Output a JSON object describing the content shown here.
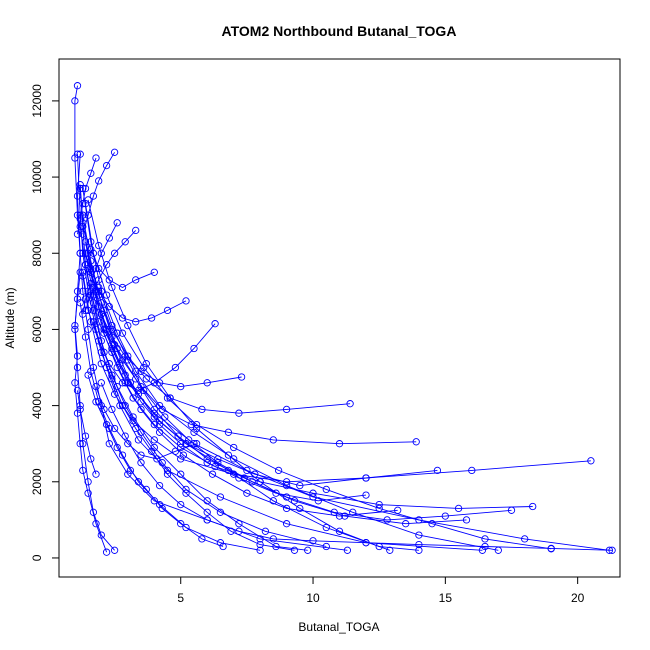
{
  "chart_data": {
    "type": "scatter",
    "title": "ATOM2 Northbound Butanal_TOGA",
    "xlabel": "Butanal_TOGA",
    "ylabel": "Altitude (m)",
    "xlim": [
      0.4,
      21.6
    ],
    "ylim": [
      -500,
      13100
    ],
    "xticks": [
      5,
      10,
      15,
      20
    ],
    "yticks": [
      0,
      2000,
      4000,
      6000,
      8000,
      10000,
      12000
    ],
    "series_color": "#0000ff",
    "marker": "open-circle",
    "lines_connect_points": true,
    "grid": false,
    "legend": "none",
    "profiles": [
      [
        [
          2.5,
          200
        ],
        [
          2.0,
          600
        ],
        [
          1.7,
          1200
        ],
        [
          1.5,
          2000
        ],
        [
          1.3,
          3000
        ],
        [
          1.2,
          4000
        ],
        [
          1.1,
          5000
        ],
        [
          1.0,
          6000
        ],
        [
          1.1,
          7000
        ],
        [
          1.2,
          8000
        ],
        [
          1.1,
          9000
        ],
        [
          1.0,
          10500
        ],
        [
          1.0,
          12000
        ],
        [
          1.1,
          12400
        ]
      ],
      [
        [
          11.3,
          200
        ],
        [
          8.0,
          500
        ],
        [
          6.0,
          1000
        ],
        [
          4.0,
          1500
        ],
        [
          3.0,
          2200
        ],
        [
          2.3,
          3000
        ],
        [
          2.0,
          4000
        ],
        [
          1.7,
          5000
        ],
        [
          1.5,
          6000
        ],
        [
          1.3,
          7000
        ],
        [
          1.2,
          8000
        ],
        [
          1.1,
          9500
        ],
        [
          1.2,
          10600
        ]
      ],
      [
        [
          16.4,
          200
        ],
        [
          12.0,
          400
        ],
        [
          9.0,
          900
        ],
        [
          6.5,
          1600
        ],
        [
          4.5,
          2300
        ],
        [
          3.4,
          3100
        ],
        [
          2.7,
          4000
        ],
        [
          2.2,
          5000
        ],
        [
          1.8,
          6000
        ],
        [
          1.5,
          7000
        ],
        [
          1.3,
          8000
        ],
        [
          1.2,
          9000
        ],
        [
          1.1,
          10600
        ]
      ],
      [
        [
          21.2,
          200
        ],
        [
          18.0,
          500
        ],
        [
          14.0,
          1000
        ],
        [
          10.0,
          1600
        ],
        [
          7.5,
          2300
        ],
        [
          5.5,
          3000
        ],
        [
          4.0,
          3800
        ],
        [
          3.0,
          4600
        ],
        [
          2.4,
          5500
        ],
        [
          1.9,
          6600
        ],
        [
          1.6,
          7600
        ],
        [
          1.3,
          8800
        ],
        [
          1.2,
          9800
        ]
      ],
      [
        [
          12.9,
          200
        ],
        [
          10.5,
          800
        ],
        [
          8.5,
          1500
        ],
        [
          6.8,
          2300
        ],
        [
          5.2,
          3000
        ],
        [
          4.0,
          3700
        ],
        [
          3.1,
          4600
        ],
        [
          2.5,
          5600
        ],
        [
          2.0,
          6700
        ],
        [
          1.6,
          7800
        ],
        [
          1.3,
          9000
        ]
      ],
      [
        [
          17.0,
          200
        ],
        [
          14.0,
          600
        ],
        [
          11.5,
          1200
        ],
        [
          9.0,
          1900
        ],
        [
          7.0,
          2600
        ],
        [
          5.5,
          3300
        ],
        [
          4.2,
          4000
        ],
        [
          3.3,
          4900
        ],
        [
          2.6,
          5900
        ],
        [
          2.0,
          7000
        ],
        [
          1.6,
          8300
        ],
        [
          1.3,
          9700
        ]
      ],
      [
        [
          9.8,
          200
        ],
        [
          8.6,
          300
        ],
        [
          7.2,
          900
        ],
        [
          6.0,
          1500
        ],
        [
          5.0,
          2200
        ],
        [
          4.0,
          2900
        ],
        [
          3.2,
          3700
        ],
        [
          2.6,
          4500
        ],
        [
          2.1,
          5400
        ],
        [
          1.7,
          6500
        ],
        [
          1.4,
          7700
        ],
        [
          1.2,
          9700
        ]
      ],
      [
        [
          14.0,
          200
        ],
        [
          12.5,
          300
        ],
        [
          11.0,
          700
        ],
        [
          9.5,
          1300
        ],
        [
          8.0,
          2000
        ],
        [
          6.8,
          2700
        ],
        [
          5.6,
          3400
        ],
        [
          4.6,
          4200
        ],
        [
          3.7,
          5100
        ],
        [
          3.0,
          6100
        ],
        [
          2.4,
          7100
        ],
        [
          1.9,
          8200
        ],
        [
          1.5,
          9400
        ]
      ],
      [
        [
          20.5,
          2550
        ],
        [
          16.0,
          2300
        ],
        [
          12.0,
          2100
        ],
        [
          9.0,
          2000
        ],
        [
          7.0,
          2200
        ],
        [
          5.0,
          2600
        ],
        [
          4.0,
          3100
        ],
        [
          3.2,
          3600
        ],
        [
          2.5,
          4300
        ],
        [
          2.0,
          5100
        ],
        [
          1.6,
          6200
        ],
        [
          1.3,
          7500
        ]
      ],
      [
        [
          14.7,
          2300
        ],
        [
          12.0,
          2100
        ],
        [
          9.5,
          1900
        ],
        [
          7.8,
          2200
        ],
        [
          6.4,
          2600
        ],
        [
          5.2,
          3000
        ],
        [
          4.2,
          3600
        ],
        [
          3.4,
          4300
        ],
        [
          2.7,
          5100
        ],
        [
          2.1,
          6000
        ],
        [
          1.7,
          7100
        ],
        [
          1.4,
          8300
        ]
      ],
      [
        [
          13.9,
          3050
        ],
        [
          11.0,
          3000
        ],
        [
          8.5,
          3100
        ],
        [
          6.8,
          3300
        ],
        [
          5.4,
          3500
        ],
        [
          4.3,
          3900
        ],
        [
          3.5,
          4500
        ],
        [
          2.8,
          5200
        ],
        [
          2.2,
          6000
        ],
        [
          1.8,
          7000
        ],
        [
          1.4,
          8000
        ]
      ],
      [
        [
          18.3,
          1350
        ],
        [
          15.5,
          1300
        ],
        [
          12.5,
          1400
        ],
        [
          10.0,
          1700
        ],
        [
          8.0,
          2000
        ],
        [
          6.3,
          2400
        ],
        [
          5.0,
          2900
        ],
        [
          4.0,
          3500
        ],
        [
          3.2,
          4200
        ],
        [
          2.6,
          5000
        ],
        [
          2.1,
          5900
        ],
        [
          1.7,
          6900
        ],
        [
          1.4,
          8000
        ]
      ],
      [
        [
          11.4,
          4050
        ],
        [
          9.0,
          3900
        ],
        [
          7.2,
          3800
        ],
        [
          5.8,
          3900
        ],
        [
          4.6,
          4200
        ],
        [
          3.7,
          4700
        ],
        [
          3.0,
          5300
        ],
        [
          2.4,
          6000
        ],
        [
          1.9,
          6900
        ],
        [
          1.5,
          8000
        ]
      ],
      [
        [
          19.0,
          240
        ],
        [
          16.5,
          500
        ],
        [
          14.5,
          900
        ],
        [
          12.5,
          1300
        ],
        [
          10.5,
          1800
        ],
        [
          8.7,
          2300
        ],
        [
          7.0,
          2900
        ],
        [
          5.6,
          3500
        ],
        [
          4.5,
          4200
        ],
        [
          3.6,
          5000
        ],
        [
          2.8,
          5900
        ],
        [
          2.2,
          6900
        ],
        [
          1.7,
          8000
        ],
        [
          1.4,
          9300
        ]
      ],
      [
        [
          4.0,
          7500
        ],
        [
          3.3,
          7300
        ],
        [
          2.8,
          7100
        ],
        [
          2.3,
          7300
        ],
        [
          1.9,
          7600
        ],
        [
          1.6,
          8100
        ],
        [
          1.3,
          8700
        ]
      ],
      [
        [
          6.3,
          6150
        ],
        [
          5.5,
          5500
        ],
        [
          4.8,
          5000
        ],
        [
          4.0,
          4600
        ],
        [
          3.4,
          4400
        ],
        [
          2.8,
          4600
        ],
        [
          2.3,
          5100
        ],
        [
          1.9,
          5700
        ],
        [
          1.5,
          6500
        ],
        [
          1.3,
          7400
        ]
      ],
      [
        [
          5.2,
          6750
        ],
        [
          4.5,
          6500
        ],
        [
          3.9,
          6300
        ],
        [
          3.3,
          6200
        ],
        [
          2.8,
          6300
        ],
        [
          2.3,
          6600
        ],
        [
          1.9,
          7000
        ],
        [
          1.5,
          7600
        ]
      ],
      [
        [
          2.5,
          10650
        ],
        [
          2.2,
          10300
        ],
        [
          1.9,
          9900
        ],
        [
          1.7,
          9500
        ],
        [
          1.5,
          9000
        ],
        [
          1.3,
          8500
        ]
      ],
      [
        [
          3.3,
          8600
        ],
        [
          2.9,
          8300
        ],
        [
          2.5,
          8000
        ],
        [
          2.2,
          7700
        ],
        [
          1.9,
          7300
        ],
        [
          1.6,
          6900
        ],
        [
          1.4,
          6500
        ]
      ],
      [
        [
          2.2,
          150
        ],
        [
          1.8,
          900
        ],
        [
          1.5,
          1700
        ],
        [
          1.3,
          2300
        ],
        [
          1.2,
          3000
        ],
        [
          1.1,
          3800
        ],
        [
          1.0,
          4600
        ],
        [
          1.1,
          5300
        ],
        [
          1.0,
          6100
        ],
        [
          1.1,
          6800
        ],
        [
          1.2,
          7500
        ]
      ],
      [
        [
          8.0,
          200
        ],
        [
          6.5,
          400
        ],
        [
          5.2,
          800
        ],
        [
          4.2,
          1400
        ],
        [
          3.4,
          2000
        ],
        [
          2.8,
          2700
        ],
        [
          2.3,
          3400
        ],
        [
          1.9,
          4100
        ],
        [
          1.6,
          4900
        ],
        [
          1.4,
          5800
        ],
        [
          1.2,
          6700
        ]
      ],
      [
        [
          10.5,
          300
        ],
        [
          8.2,
          700
        ],
        [
          6.5,
          1200
        ],
        [
          5.2,
          1800
        ],
        [
          4.3,
          2500
        ],
        [
          3.5,
          3300
        ],
        [
          2.9,
          4000
        ],
        [
          2.4,
          4800
        ],
        [
          2.0,
          5700
        ],
        [
          1.7,
          6700
        ],
        [
          1.4,
          7700
        ],
        [
          1.2,
          8700
        ]
      ],
      [
        [
          13.2,
          1250
        ],
        [
          11.0,
          1100
        ],
        [
          9.0,
          1300
        ],
        [
          7.5,
          1700
        ],
        [
          6.2,
          2200
        ],
        [
          5.1,
          2700
        ],
        [
          4.2,
          3300
        ],
        [
          3.5,
          3900
        ],
        [
          2.9,
          4600
        ],
        [
          2.4,
          5400
        ],
        [
          1.9,
          6200
        ],
        [
          1.6,
          7000
        ]
      ],
      [
        [
          15.8,
          1000
        ],
        [
          13.5,
          900
        ],
        [
          11.2,
          1100
        ],
        [
          9.3,
          1500
        ],
        [
          7.7,
          2000
        ],
        [
          6.4,
          2500
        ],
        [
          5.3,
          3100
        ],
        [
          4.4,
          3700
        ],
        [
          3.6,
          4400
        ],
        [
          3.0,
          5200
        ],
        [
          2.4,
          6100
        ],
        [
          1.9,
          7100
        ]
      ],
      [
        [
          17.5,
          1250
        ],
        [
          15.0,
          1100
        ],
        [
          12.8,
          1000
        ],
        [
          10.8,
          1200
        ],
        [
          9.0,
          1600
        ],
        [
          7.4,
          2100
        ],
        [
          6.0,
          2600
        ],
        [
          4.9,
          3200
        ],
        [
          4.0,
          3900
        ],
        [
          3.3,
          4700
        ],
        [
          2.6,
          5500
        ],
        [
          2.1,
          6500
        ],
        [
          1.6,
          7500
        ]
      ],
      [
        [
          12.0,
          1650
        ],
        [
          10.2,
          1500
        ],
        [
          8.6,
          1700
        ],
        [
          7.2,
          2100
        ],
        [
          6.0,
          2500
        ],
        [
          5.0,
          3000
        ],
        [
          4.2,
          3500
        ],
        [
          3.5,
          4100
        ],
        [
          2.9,
          4800
        ],
        [
          2.4,
          5600
        ],
        [
          2.0,
          6400
        ]
      ],
      [
        [
          9.3,
          200
        ],
        [
          8.0,
          350
        ],
        [
          6.9,
          700
        ],
        [
          6.0,
          1200
        ],
        [
          5.2,
          1700
        ],
        [
          4.5,
          2200
        ],
        [
          3.9,
          2800
        ],
        [
          3.3,
          3400
        ],
        [
          2.8,
          4000
        ],
        [
          2.4,
          4700
        ],
        [
          2.0,
          5400
        ],
        [
          1.7,
          6200
        ]
      ],
      [
        [
          7.3,
          4750
        ],
        [
          6.0,
          4600
        ],
        [
          5.0,
          4500
        ],
        [
          4.2,
          4600
        ],
        [
          3.5,
          4900
        ],
        [
          2.9,
          5300
        ],
        [
          2.4,
          5800
        ],
        [
          2.0,
          6400
        ]
      ],
      [
        [
          5.6,
          3000
        ],
        [
          4.8,
          2800
        ],
        [
          4.1,
          2600
        ],
        [
          3.5,
          2700
        ],
        [
          3.0,
          3000
        ],
        [
          2.5,
          3400
        ],
        [
          2.1,
          3900
        ],
        [
          1.8,
          4500
        ]
      ],
      [
        [
          2.6,
          8800
        ],
        [
          2.3,
          8400
        ],
        [
          2.0,
          8000
        ],
        [
          1.8,
          7600
        ],
        [
          1.6,
          7200
        ],
        [
          1.4,
          6800
        ],
        [
          1.3,
          6400
        ]
      ],
      [
        [
          1.8,
          10500
        ],
        [
          1.6,
          10100
        ],
        [
          1.4,
          9700
        ],
        [
          1.3,
          9300
        ],
        [
          1.2,
          8900
        ],
        [
          1.1,
          8500
        ]
      ],
      [
        [
          6.6,
          300
        ],
        [
          5.8,
          500
        ],
        [
          5.0,
          900
        ],
        [
          4.3,
          1300
        ],
        [
          3.7,
          1800
        ],
        [
          3.1,
          2300
        ],
        [
          2.6,
          2900
        ],
        [
          2.2,
          3500
        ],
        [
          1.8,
          4100
        ],
        [
          1.5,
          4800
        ]
      ],
      [
        [
          1.8,
          2200
        ],
        [
          1.6,
          2600
        ],
        [
          1.4,
          3200
        ],
        [
          1.2,
          3900
        ],
        [
          1.1,
          4400
        ]
      ],
      [
        [
          21.3,
          200
        ],
        [
          19.0,
          250
        ],
        [
          16.5,
          300
        ],
        [
          14.0,
          350
        ],
        [
          12.0,
          400
        ],
        [
          10.0,
          450
        ],
        [
          8.5,
          500
        ],
        [
          7.2,
          700
        ],
        [
          6.0,
          1000
        ],
        [
          5.0,
          1400
        ],
        [
          4.2,
          1900
        ],
        [
          3.5,
          2500
        ],
        [
          2.9,
          3200
        ],
        [
          2.4,
          3900
        ],
        [
          2.0,
          4600
        ]
      ]
    ]
  }
}
